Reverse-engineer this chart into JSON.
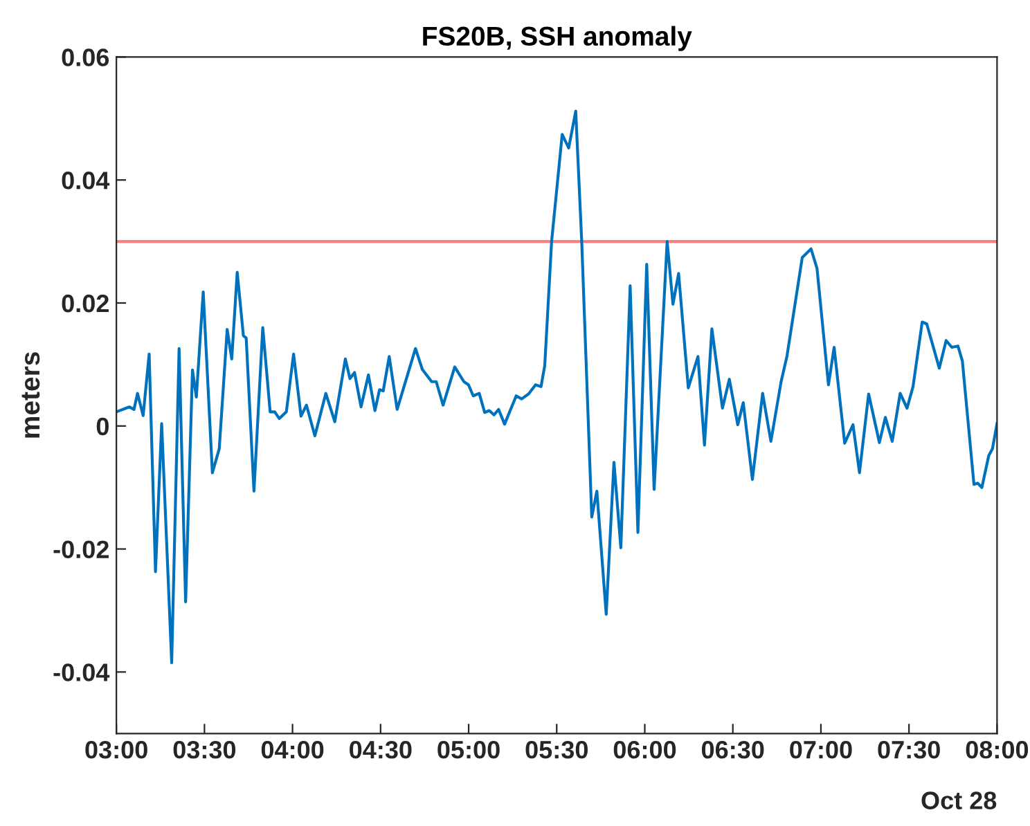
{
  "chart_data": {
    "type": "line",
    "title": "FS20B, SSH anomaly",
    "ylabel": "meters",
    "annotations": [
      "Oct 28"
    ],
    "x": [
      3.0,
      3.073,
      3.1,
      3.12,
      3.152,
      3.186,
      3.222,
      3.257,
      3.314,
      3.356,
      3.393,
      3.432,
      3.454,
      3.493,
      3.545,
      3.584,
      3.629,
      3.655,
      3.686,
      3.721,
      3.737,
      3.781,
      3.831,
      3.873,
      3.899,
      3.925,
      3.965,
      4.006,
      4.048,
      4.079,
      4.127,
      4.189,
      4.24,
      4.3,
      4.326,
      4.352,
      4.389,
      4.431,
      4.468,
      4.494,
      4.515,
      4.549,
      4.594,
      4.698,
      4.737,
      4.79,
      4.816,
      4.855,
      4.921,
      4.973,
      4.999,
      5.026,
      5.06,
      5.091,
      5.117,
      5.144,
      5.17,
      5.204,
      5.27,
      5.301,
      5.34,
      5.38,
      5.411,
      5.432,
      5.471,
      5.531,
      5.568,
      5.608,
      5.642,
      5.699,
      5.728,
      5.781,
      5.825,
      5.864,
      5.917,
      5.961,
      6.011,
      6.053,
      6.127,
      6.16,
      6.192,
      6.247,
      6.302,
      6.339,
      6.381,
      6.441,
      6.48,
      6.528,
      6.559,
      6.611,
      6.669,
      6.716,
      6.774,
      6.807,
      6.894,
      6.944,
      6.978,
      7.043,
      7.075,
      7.135,
      7.182,
      7.219,
      7.271,
      7.332,
      7.366,
      7.405,
      7.45,
      7.489,
      7.523,
      7.575,
      7.601,
      7.672,
      7.711,
      7.743,
      7.778,
      7.803,
      7.869,
      7.89,
      7.914,
      7.953,
      7.974,
      8.0
    ],
    "series": [
      {
        "color": "#0072bd",
        "values": [
          0.0023,
          0.0031,
          0.0027,
          0.0053,
          0.0017,
          0.0117,
          -0.0237,
          0.0004,
          -0.0385,
          0.0126,
          -0.0286,
          0.0091,
          0.0047,
          0.0218,
          -0.0076,
          -0.0037,
          0.0157,
          0.0109,
          0.025,
          0.0147,
          0.0143,
          -0.0106,
          0.016,
          0.0023,
          0.0023,
          0.0012,
          0.0023,
          0.0117,
          0.0016,
          0.0034,
          -0.0016,
          0.0053,
          0.0007,
          0.0109,
          0.0077,
          0.0087,
          0.0031,
          0.0083,
          0.0025,
          0.0059,
          0.0057,
          0.0113,
          0.0027,
          0.0126,
          0.0092,
          0.0072,
          0.0072,
          0.0034,
          0.0096,
          0.0072,
          0.0067,
          0.0049,
          0.0053,
          0.0022,
          0.0025,
          0.0018,
          0.0027,
          0.0003,
          0.0049,
          0.0044,
          0.0052,
          0.0067,
          0.0064,
          0.0098,
          0.03,
          0.0474,
          0.0452,
          0.0512,
          0.03,
          -0.0148,
          -0.0106,
          -0.0306,
          -0.0059,
          -0.0198,
          0.0228,
          -0.0173,
          0.0263,
          -0.0103,
          0.03,
          0.0198,
          0.0248,
          0.0062,
          0.0113,
          -0.0031,
          0.0158,
          0.0029,
          0.0076,
          0.0002,
          0.0038,
          -0.0087,
          0.0053,
          -0.0025,
          0.0072,
          0.0113,
          0.0274,
          0.0288,
          0.0256,
          0.0067,
          0.0128,
          -0.0028,
          0.0002,
          -0.0076,
          0.0052,
          -0.0027,
          0.0014,
          -0.0025,
          0.0053,
          0.0029,
          0.0064,
          0.0169,
          0.0166,
          0.0094,
          0.0139,
          0.0128,
          0.013,
          0.0106,
          -0.0095,
          -0.0093,
          -0.01,
          -0.0048,
          -0.0037,
          0.0004
        ]
      }
    ],
    "xlim": [
      3,
      8
    ],
    "xticks": [
      {
        "value": 3,
        "label": "03:00"
      },
      {
        "value": 3.5,
        "label": "03:30"
      },
      {
        "value": 4,
        "label": "04:00"
      },
      {
        "value": 4.5,
        "label": "04:30"
      },
      {
        "value": 5,
        "label": "05:00"
      },
      {
        "value": 5.5,
        "label": "05:30"
      },
      {
        "value": 6,
        "label": "06:00"
      },
      {
        "value": 6.5,
        "label": "06:30"
      },
      {
        "value": 7,
        "label": "07:00"
      },
      {
        "value": 7.5,
        "label": "07:30"
      },
      {
        "value": 8,
        "label": "08:00"
      }
    ],
    "ylim": [
      -0.05,
      0.06
    ],
    "yticks": [
      -0.04,
      -0.02,
      0,
      0.02,
      0.04,
      0.06
    ],
    "ref_lines": [
      {
        "axis": "y",
        "value": 0.03,
        "color": "#ff7f7f",
        "line_style": "solid"
      }
    ],
    "grid": false,
    "legend": false,
    "marker": "none",
    "line_style": "solid"
  }
}
